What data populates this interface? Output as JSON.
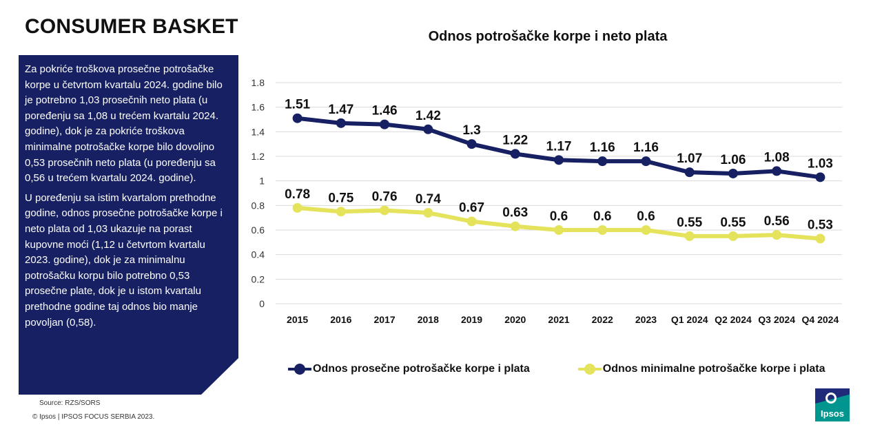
{
  "page": {
    "title": "CONSUMER BASKET"
  },
  "panel": {
    "paragraphs": [
      "Za pokriće troškova prosečne potrošačke korpe u četvrtom kvartalu 2024. godine bilo je potrebno 1,03 prosečnih neto plata (u poređenju sa 1,08 u trećem kvartalu 2024. godine), dok je za pokriće troškova minimalne potrošačke korpe bilo dovoljno 0,53 prosečnih neto plata (u poređenju sa 0,56 u trećem kvartalu 2024. godine).",
      "U poređenju sa istim kvartalom prethodne godine, odnos prosečne potrošačke korpe i neto plata od 1,03 ukazuje na porast kupovne moći (1,12 u četvrtom kvartalu 2023. godine), dok je za minimalnu potrošačku korpu bilo potrebno 0,53 prosečne plate, dok je u istom kvartalu prethodne godine taj odnos bio manje povoljan (0,58)."
    ]
  },
  "footer": {
    "source": "Source: RZS/SORS",
    "copyright": "© Ipsos | IPSOS FOCUS SERBIA 2023."
  },
  "logo": {
    "text": "Ipsos"
  },
  "chart_data": {
    "type": "line",
    "title": "Odnos potrošačke korpe i neto plata",
    "categories": [
      "2015",
      "2016",
      "2017",
      "2018",
      "2019",
      "2020",
      "2021",
      "2022",
      "2023",
      "Q1 2024",
      "Q2 2024",
      "Q3 2024",
      "Q4 2024"
    ],
    "series": [
      {
        "name": "Odnos prosečne potrošačke korpe i plata",
        "color": "#162062",
        "values": [
          1.51,
          1.47,
          1.46,
          1.42,
          1.3,
          1.22,
          1.17,
          1.16,
          1.16,
          1.07,
          1.06,
          1.08,
          1.03
        ],
        "labels": [
          "1.51",
          "1.47",
          "1.46",
          "1.42",
          "1.3",
          "1.22",
          "1.17",
          "1.16",
          "1.16",
          "1.07",
          "1.06",
          "1.08",
          "1.03"
        ]
      },
      {
        "name": "Odnos minimalne potrošačke korpe i plata",
        "color": "#e4e35b",
        "values": [
          0.78,
          0.75,
          0.76,
          0.74,
          0.67,
          0.63,
          0.6,
          0.6,
          0.6,
          0.55,
          0.55,
          0.56,
          0.53
        ],
        "labels": [
          "0.78",
          "0.75",
          "0.76",
          "0.74",
          "0.67",
          "0.63",
          "0.6",
          "0.6",
          "0.6",
          "0.55",
          "0.55",
          "0.56",
          "0.53"
        ]
      }
    ],
    "yticks": [
      "0",
      "0.2",
      "0.4",
      "0.6",
      "0.8",
      "1",
      "1.2",
      "1.4",
      "1.6",
      "1.8"
    ],
    "ylim": [
      0,
      1.8
    ],
    "grid": true,
    "legend_position": "bottom"
  }
}
